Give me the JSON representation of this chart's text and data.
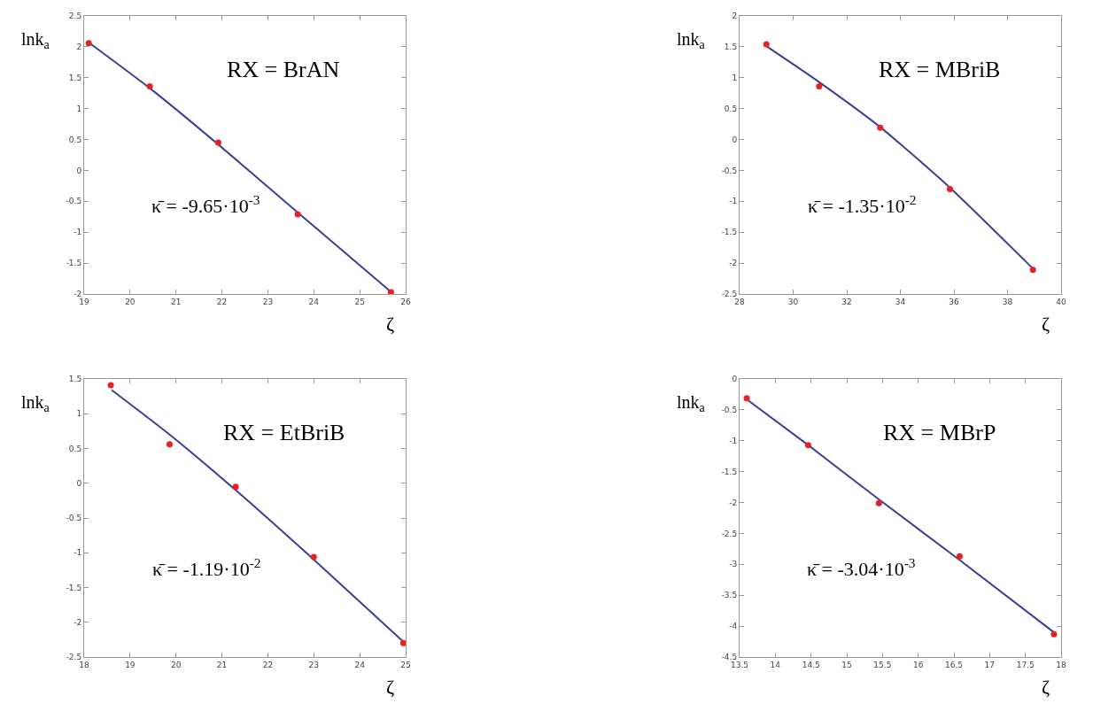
{
  "chart_data": [
    {
      "type": "scatter",
      "xlabel": "ζ",
      "ylabel": "lnk$_{a}$",
      "xlim": [
        19,
        26
      ],
      "xticks": [
        19,
        20,
        21,
        22,
        23,
        24,
        25,
        26
      ],
      "ylim": [
        -2,
        2.5
      ],
      "yticks": [
        -2,
        -1.5,
        -1,
        -0.5,
        0,
        0.5,
        1,
        1.5,
        2,
        2.5
      ],
      "annotations": [
        "RX = BrAN",
        "κ̄ = -9.65·10$^{-3}$"
      ],
      "series": [
        {
          "marker": "circle",
          "color": "#e8201f",
          "x": [
            19.1,
            20.43,
            21.92,
            23.65,
            25.68
          ],
          "values": [
            2.06,
            1.36,
            0.45,
            -0.71,
            -1.97
          ]
        },
        {
          "type": "line",
          "marker": "none",
          "line_style": "solid",
          "color": "#3b3f9a",
          "x": [
            19.1,
            20.43,
            21.92,
            23.65,
            25.7
          ],
          "values": [
            2.07,
            1.33,
            0.42,
            -0.68,
            -1.98
          ]
        }
      ]
    },
    {
      "type": "scatter",
      "xlabel": "ζ",
      "ylabel": "lnk$_{a}$",
      "xlim": [
        28,
        40
      ],
      "xticks": [
        28,
        30,
        32,
        34,
        36,
        38,
        40
      ],
      "ylim": [
        -2.5,
        2
      ],
      "yticks": [
        -2.5,
        -2,
        -1.5,
        -1,
        -0.5,
        0,
        0.5,
        1,
        1.5,
        2
      ],
      "annotations": [
        "RX = MBriB",
        "κ̄ = -1.35·10$^{-2}$"
      ],
      "series": [
        {
          "marker": "circle",
          "color": "#e8201f",
          "x": [
            29.0,
            30.97,
            33.25,
            35.85,
            38.95
          ],
          "values": [
            1.54,
            0.86,
            0.19,
            -0.8,
            -2.11
          ]
        },
        {
          "type": "line",
          "marker": "none",
          "line_style": "solid",
          "color": "#3b3f9a",
          "x": [
            29.0,
            31.0,
            33.25,
            35.85,
            38.95
          ],
          "values": [
            1.51,
            0.92,
            0.2,
            -0.78,
            -2.09
          ]
        }
      ]
    },
    {
      "type": "scatter",
      "xlabel": "ζ",
      "ylabel": "lnk$_{a}$",
      "xlim": [
        18,
        25
      ],
      "xticks": [
        18,
        19,
        20,
        21,
        22,
        23,
        24,
        25
      ],
      "ylim": [
        -2.5,
        1.5
      ],
      "yticks": [
        -2.5,
        -2,
        -1.5,
        -1,
        -0.5,
        0,
        0.5,
        1,
        1.5
      ],
      "annotations": [
        "RX = EtBriB",
        "κ̄ = -1.19·10$^{-2}$"
      ],
      "series": [
        {
          "marker": "circle",
          "color": "#e8201f",
          "x": [
            18.58,
            19.86,
            21.3,
            23.0,
            24.95
          ],
          "values": [
            1.41,
            0.56,
            -0.05,
            -1.06,
            -2.3
          ]
        },
        {
          "type": "line",
          "marker": "none",
          "line_style": "solid",
          "color": "#3b3f9a",
          "x": [
            18.6,
            19.86,
            21.3,
            23.0,
            24.95
          ],
          "values": [
            1.34,
            0.7,
            -0.1,
            -1.1,
            -2.28
          ]
        }
      ]
    },
    {
      "type": "scatter",
      "xlabel": "ζ",
      "ylabel": "lnk$_{a}$",
      "xlim": [
        13.5,
        18
      ],
      "xticks": [
        13.5,
        14,
        14.5,
        15,
        15.5,
        16,
        16.5,
        17,
        17.5,
        18
      ],
      "ylim": [
        -4.5,
        0
      ],
      "yticks": [
        -4.5,
        -4,
        -3.5,
        -3,
        -2.5,
        -2,
        -1.5,
        -1,
        -0.5,
        0
      ],
      "annotations": [
        "RX = MBrP",
        "κ̄ = -3.04·10$^{-3}$"
      ],
      "series": [
        {
          "marker": "circle",
          "color": "#e8201f",
          "x": [
            13.6,
            14.46,
            15.45,
            16.58,
            17.9
          ],
          "values": [
            -0.31,
            -1.07,
            -2.01,
            -2.87,
            -4.13
          ]
        },
        {
          "type": "line",
          "marker": "none",
          "line_style": "solid",
          "color": "#3b3f9a",
          "x": [
            13.6,
            14.46,
            15.45,
            16.58,
            17.9
          ],
          "values": [
            -0.33,
            -1.07,
            -1.95,
            -2.93,
            -4.1
          ]
        }
      ]
    }
  ]
}
